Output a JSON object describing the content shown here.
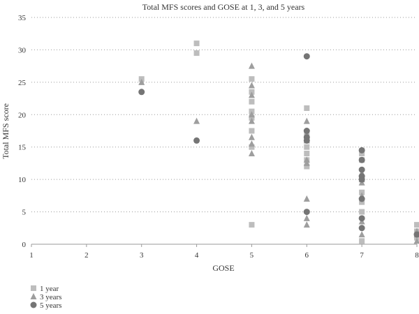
{
  "chart_data": {
    "type": "scatter",
    "title": "Total MFS scores and GOSE at 1, 3, and 5 years",
    "xlabel": "GOSE",
    "ylabel": "Total MFS score",
    "xlim": [
      1,
      8
    ],
    "ylim": [
      0,
      35
    ],
    "xticks": [
      "1",
      "2",
      "3",
      "4",
      "5",
      "6",
      "7",
      "8"
    ],
    "yticks": [
      "0",
      "5",
      "10",
      "15",
      "20",
      "25",
      "30",
      "35"
    ],
    "grid": "horizontal-dotted",
    "legend_position": "bottom-left",
    "series": [
      {
        "name": "1 year",
        "marker": "square",
        "color": "#bdbdbd",
        "points": [
          [
            3,
            25.5
          ],
          [
            4,
            31
          ],
          [
            4,
            29.5
          ],
          [
            5,
            25.5
          ],
          [
            5,
            23.5
          ],
          [
            5,
            22
          ],
          [
            5,
            20.5
          ],
          [
            5,
            19.5
          ],
          [
            5,
            17.5
          ],
          [
            5,
            15
          ],
          [
            5,
            3
          ],
          [
            6,
            21
          ],
          [
            6,
            17
          ],
          [
            6,
            16
          ],
          [
            6,
            15
          ],
          [
            6,
            14
          ],
          [
            6,
            13
          ],
          [
            6,
            12
          ],
          [
            7,
            14
          ],
          [
            7,
            13
          ],
          [
            7,
            10
          ],
          [
            7,
            8
          ],
          [
            7,
            6.5
          ],
          [
            7,
            5
          ],
          [
            7,
            0.5
          ],
          [
            8,
            3
          ],
          [
            8,
            2
          ],
          [
            8,
            1
          ]
        ]
      },
      {
        "name": "3 years",
        "marker": "triangle",
        "color": "#9e9e9e",
        "points": [
          [
            3,
            25
          ],
          [
            4,
            19
          ],
          [
            5,
            27.5
          ],
          [
            5,
            24.5
          ],
          [
            5,
            23
          ],
          [
            5,
            20
          ],
          [
            5,
            19
          ],
          [
            5,
            16.5
          ],
          [
            5,
            15.5
          ],
          [
            5,
            14
          ],
          [
            6,
            19
          ],
          [
            6,
            17
          ],
          [
            6,
            16
          ],
          [
            6,
            13
          ],
          [
            6,
            12.5
          ],
          [
            6,
            7
          ],
          [
            6,
            4
          ],
          [
            6,
            3
          ],
          [
            7,
            11
          ],
          [
            7,
            10
          ],
          [
            7,
            9.5
          ],
          [
            7,
            7.5
          ],
          [
            7,
            3.5
          ],
          [
            7,
            1.5
          ],
          [
            8,
            2
          ],
          [
            8,
            1.5
          ],
          [
            8,
            0.5
          ]
        ]
      },
      {
        "name": "5 years",
        "marker": "circle",
        "color": "#757575",
        "points": [
          [
            3,
            23.5
          ],
          [
            4,
            16
          ],
          [
            6,
            29
          ],
          [
            6,
            17.5
          ],
          [
            6,
            16.5
          ],
          [
            6,
            16
          ],
          [
            6,
            5
          ],
          [
            7,
            14.5
          ],
          [
            7,
            13
          ],
          [
            7,
            11.5
          ],
          [
            7,
            10.5
          ],
          [
            7,
            10
          ],
          [
            7,
            7
          ],
          [
            7,
            4
          ],
          [
            7,
            2.5
          ],
          [
            8,
            1.5
          ]
        ]
      }
    ]
  }
}
